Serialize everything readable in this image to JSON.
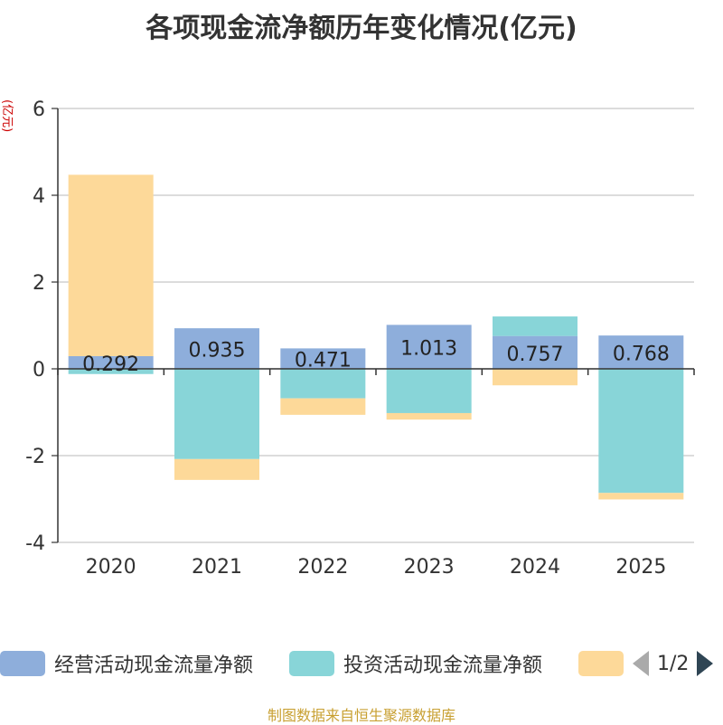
{
  "chart_data": {
    "type": "bar",
    "stacked": true,
    "title": "各项现金流净额历年变化情况(亿元)",
    "ylabel": "(亿元)",
    "categories": [
      "2020",
      "2021",
      "2022",
      "2023",
      "2024",
      "2025"
    ],
    "ylim": [
      -4,
      6
    ],
    "yticks": [
      "6",
      "4",
      "2",
      "0",
      "-2",
      "-4"
    ],
    "grid": true,
    "series": [
      {
        "name": "经营活动现金流量净额",
        "color": "#8eaedb",
        "values": [
          0.292,
          0.935,
          0.471,
          1.013,
          0.757,
          0.768
        ],
        "labels": [
          "0.292",
          "0.935",
          "0.471",
          "1.013",
          "0.757",
          "0.768"
        ]
      },
      {
        "name": "投资活动现金流量净额",
        "color": "#88d5d8",
        "values": [
          -0.12,
          -2.08,
          -0.68,
          -1.02,
          0.45,
          -2.86
        ]
      },
      {
        "name": "",
        "color": "#fdd999",
        "values": [
          4.18,
          -0.48,
          -0.38,
          -0.15,
          -0.38,
          -0.15
        ]
      }
    ]
  },
  "legend": {
    "items": [
      {
        "label": "经营活动现金流量净额",
        "color": "#8eaedb"
      },
      {
        "label": "投资活动现金流量净额",
        "color": "#88d5d8"
      },
      {
        "label": "",
        "color": "#fdd999"
      }
    ],
    "pager": {
      "text": "1/2",
      "prev_color": "#aaaaaa",
      "next_color": "#2f4554"
    }
  },
  "footer": {
    "source": "制图数据来自恒生聚源数据库"
  }
}
